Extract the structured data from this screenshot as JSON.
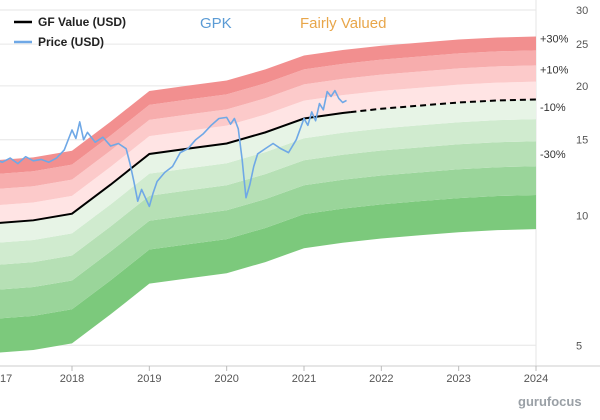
{
  "header": {
    "ticker": "GPK",
    "valuation_label": "Fairly Valued"
  },
  "legend": {
    "gf_value_label": "GF Value (USD)",
    "price_label": "Price (USD)"
  },
  "watermark": "gurufocus",
  "colors": {
    "gf_value_line": "#000000",
    "price_line": "#6fa8e6",
    "overvalued_band": "#ef7c7c",
    "undervalued_band": "#7cc97c",
    "ticker": "#5b9bd5",
    "valuation": "#e8a64a"
  },
  "chart_data": {
    "type": "line",
    "y_scale": "log",
    "ylim": [
      4.5,
      30
    ],
    "xlim": [
      2017,
      2024
    ],
    "x_ticks": [
      "17",
      "2018",
      "2019",
      "2020",
      "2021",
      "2022",
      "2023",
      "2024"
    ],
    "y_ticks": [
      5,
      10,
      15,
      20,
      25,
      30
    ],
    "band_labels": [
      "+30%",
      "+10%",
      "-10%",
      "-30%"
    ],
    "band_multipliers": [
      0.5,
      0.6,
      0.7,
      0.8,
      0.9,
      1.0,
      1.1,
      1.2,
      1.3,
      1.4
    ],
    "series": [
      {
        "name": "GF Value (USD)",
        "style": "solid_then_dashed",
        "dashed_from": 2021.6,
        "x": [
          2017.0,
          2017.5,
          2018.0,
          2018.5,
          2019.0,
          2019.5,
          2020.0,
          2020.5,
          2021.0,
          2021.5,
          2022.0,
          2022.5,
          2023.0,
          2023.5,
          2024.0
        ],
        "y": [
          9.6,
          9.75,
          10.1,
          11.8,
          13.9,
          14.3,
          14.7,
          15.6,
          16.8,
          17.3,
          17.7,
          18.0,
          18.3,
          18.5,
          18.6
        ]
      },
      {
        "name": "Price (USD)",
        "style": "solid",
        "x": [
          2017.0,
          2017.1,
          2017.2,
          2017.3,
          2017.4,
          2017.5,
          2017.6,
          2017.7,
          2017.8,
          2017.9,
          2018.0,
          2018.05,
          2018.1,
          2018.15,
          2018.2,
          2018.3,
          2018.4,
          2018.5,
          2018.6,
          2018.7,
          2018.75,
          2018.8,
          2018.85,
          2018.9,
          2019.0,
          2019.05,
          2019.1,
          2019.2,
          2019.3,
          2019.4,
          2019.5,
          2019.6,
          2019.7,
          2019.8,
          2019.9,
          2020.0,
          2020.05,
          2020.1,
          2020.15,
          2020.2,
          2020.22,
          2020.25,
          2020.3,
          2020.35,
          2020.4,
          2020.5,
          2020.6,
          2020.7,
          2020.8,
          2020.9,
          2021.0,
          2021.05,
          2021.1,
          2021.15,
          2021.2,
          2021.25,
          2021.3,
          2021.35,
          2021.4,
          2021.45,
          2021.5,
          2021.55
        ],
        "y": [
          13.5,
          13.3,
          13.6,
          13.2,
          13.7,
          13.4,
          13.5,
          13.3,
          13.6,
          14.2,
          15.8,
          15.1,
          16.5,
          15.0,
          15.6,
          14.8,
          15.2,
          14.5,
          14.7,
          14.3,
          13.2,
          12.0,
          10.8,
          11.5,
          10.5,
          11.3,
          12.0,
          12.6,
          13.0,
          14.0,
          14.3,
          15.0,
          15.5,
          16.2,
          16.8,
          16.9,
          16.3,
          16.8,
          15.9,
          13.5,
          12.4,
          11.0,
          11.8,
          13.0,
          13.9,
          14.3,
          14.7,
          14.3,
          14.0,
          15.0,
          16.8,
          16.2,
          17.4,
          16.6,
          18.2,
          17.6,
          19.4,
          18.9,
          19.5,
          18.7,
          18.3,
          18.5
        ]
      }
    ]
  }
}
